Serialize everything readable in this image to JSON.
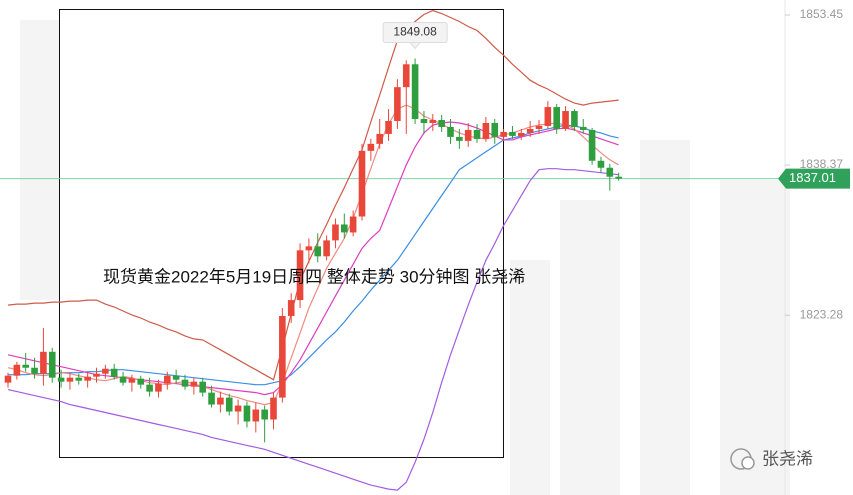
{
  "chart_data": {
    "type": "candlestick",
    "title": "现货黄金2022年5月19日周四 整体走势 30分钟图 张尧浠",
    "watermark": "张尧浠",
    "ylim": [
      1805.21,
      1854.96
    ],
    "yticks": [
      1853.45,
      1838.37,
      1823.28
    ],
    "up_color": "#e8473a",
    "down_color": "#2e9e3e",
    "last_price": 1837.01,
    "peak_label": 1849.08,
    "candles": [
      [
        1816.5,
        1817.5,
        1816.0,
        1817.2
      ],
      [
        1817.2,
        1818.6,
        1816.8,
        1818.3
      ],
      [
        1818.3,
        1819.5,
        1817.6,
        1818.0
      ],
      [
        1818.0,
        1819.0,
        1816.9,
        1817.4
      ],
      [
        1817.4,
        1822.0,
        1816.2,
        1819.6
      ],
      [
        1819.6,
        1820.0,
        1816.5,
        1817.0
      ],
      [
        1817.0,
        1817.8,
        1816.0,
        1816.6
      ],
      [
        1816.6,
        1817.5,
        1815.8,
        1817.0
      ],
      [
        1817.0,
        1817.4,
        1816.3,
        1816.7
      ],
      [
        1816.7,
        1817.6,
        1816.0,
        1817.1
      ],
      [
        1817.1,
        1818.0,
        1816.5,
        1817.4
      ],
      [
        1817.4,
        1818.3,
        1816.9,
        1817.9
      ],
      [
        1817.9,
        1818.4,
        1816.8,
        1817.1
      ],
      [
        1817.1,
        1817.6,
        1816.2,
        1816.5
      ],
      [
        1816.5,
        1817.3,
        1815.6,
        1816.9
      ],
      [
        1816.9,
        1817.2,
        1815.9,
        1816.3
      ],
      [
        1816.3,
        1817.0,
        1815.1,
        1815.6
      ],
      [
        1815.6,
        1816.8,
        1815.0,
        1816.4
      ],
      [
        1816.4,
        1817.6,
        1815.8,
        1817.2
      ],
      [
        1817.2,
        1817.8,
        1816.4,
        1816.8
      ],
      [
        1816.8,
        1817.3,
        1815.8,
        1816.1
      ],
      [
        1816.1,
        1817.0,
        1815.3,
        1816.6
      ],
      [
        1816.6,
        1817.0,
        1815.1,
        1815.5
      ],
      [
        1815.5,
        1816.2,
        1814.0,
        1814.3
      ],
      [
        1814.3,
        1815.6,
        1813.5,
        1815.0
      ],
      [
        1815.0,
        1815.4,
        1813.2,
        1813.6
      ],
      [
        1813.6,
        1814.8,
        1812.3,
        1814.2
      ],
      [
        1814.2,
        1814.6,
        1812.0,
        1812.6
      ],
      [
        1812.6,
        1814.5,
        1811.5,
        1813.8
      ],
      [
        1813.8,
        1814.2,
        1810.5,
        1812.8
      ],
      [
        1812.8,
        1815.5,
        1811.8,
        1815.0
      ],
      [
        1815.0,
        1824.0,
        1814.5,
        1823.2
      ],
      [
        1823.2,
        1825.5,
        1822.5,
        1824.8
      ],
      [
        1824.8,
        1830.5,
        1824.0,
        1829.8
      ],
      [
        1829.8,
        1831.0,
        1828.5,
        1830.2
      ],
      [
        1830.2,
        1831.5,
        1828.6,
        1829.2
      ],
      [
        1829.2,
        1831.3,
        1828.8,
        1830.8
      ],
      [
        1830.8,
        1833.0,
        1830.0,
        1832.4
      ],
      [
        1832.4,
        1833.5,
        1831.0,
        1831.6
      ],
      [
        1831.6,
        1833.8,
        1831.2,
        1833.2
      ],
      [
        1833.2,
        1840.5,
        1832.8,
        1839.8
      ],
      [
        1839.8,
        1841.0,
        1838.8,
        1840.5
      ],
      [
        1840.5,
        1843.0,
        1840.0,
        1841.5
      ],
      [
        1841.5,
        1844.0,
        1840.8,
        1842.8
      ],
      [
        1842.8,
        1847.0,
        1842.0,
        1846.2
      ],
      [
        1846.2,
        1848.9,
        1841.5,
        1848.5
      ],
      [
        1848.5,
        1849.08,
        1842.5,
        1843.0
      ],
      [
        1843.0,
        1843.8,
        1841.5,
        1842.6
      ],
      [
        1842.6,
        1843.5,
        1841.8,
        1842.9
      ],
      [
        1842.9,
        1843.4,
        1841.7,
        1842.2
      ],
      [
        1842.2,
        1843.0,
        1840.5,
        1841.2
      ],
      [
        1841.2,
        1842.0,
        1840.0,
        1840.8
      ],
      [
        1840.8,
        1842.6,
        1840.2,
        1841.9
      ],
      [
        1841.9,
        1842.5,
        1840.6,
        1841.0
      ],
      [
        1841.0,
        1843.2,
        1840.7,
        1842.6
      ],
      [
        1842.6,
        1843.0,
        1840.5,
        1841.2
      ],
      [
        1841.2,
        1842.0,
        1840.8,
        1841.7
      ],
      [
        1841.7,
        1842.3,
        1841.0,
        1841.3
      ],
      [
        1841.3,
        1842.0,
        1840.9,
        1841.6
      ],
      [
        1841.6,
        1842.8,
        1841.2,
        1842.0
      ],
      [
        1842.0,
        1842.9,
        1841.5,
        1842.3
      ],
      [
        1842.3,
        1844.8,
        1842.0,
        1844.2
      ],
      [
        1844.2,
        1844.5,
        1841.5,
        1842.0
      ],
      [
        1842.0,
        1844.3,
        1841.8,
        1843.8
      ],
      [
        1843.8,
        1844.0,
        1841.8,
        1842.2
      ],
      [
        1842.2,
        1843.0,
        1841.5,
        1841.9
      ],
      [
        1841.9,
        1842.1,
        1838.4,
        1838.8
      ],
      [
        1838.8,
        1839.2,
        1837.6,
        1838.1
      ],
      [
        1838.1,
        1838.5,
        1835.8,
        1837.2
      ],
      [
        1837.2,
        1837.6,
        1836.8,
        1837.01
      ]
    ],
    "series": [
      {
        "color": "#cf5a48",
        "values": [
          1824.3,
          1824.4,
          1824.4,
          1824.5,
          1824.5,
          1824.6,
          1824.6,
          1824.7,
          1824.7,
          1824.8,
          1824.8,
          1824.4,
          1824.1,
          1823.7,
          1823.3,
          1823.0,
          1822.6,
          1822.3,
          1821.9,
          1821.6,
          1821.2,
          1820.9,
          1820.8,
          1820.3,
          1819.8,
          1819.3,
          1818.8,
          1818.3,
          1817.8,
          1817.3,
          1816.8,
          1820.0,
          1823.4,
          1826.8,
          1828.7,
          1830.6,
          1832.4,
          1834.3,
          1836.1,
          1838.0,
          1839.9,
          1842.7,
          1845.4,
          1848.2,
          1850.9,
          1852.0,
          1852.8,
          1853.5,
          1853.9,
          1853.6,
          1853.2,
          1852.8,
          1852.3,
          1851.9,
          1851.1,
          1850.2,
          1849.4,
          1848.5,
          1847.7,
          1846.9,
          1846.4,
          1846.0,
          1845.5,
          1845.0,
          1844.6,
          1844.4,
          1844.6,
          1844.7,
          1844.8,
          1844.9
        ]
      },
      {
        "color": "#a35be0",
        "values": [
          1815.8,
          1815.6,
          1815.4,
          1815.2,
          1815.0,
          1814.8,
          1814.6,
          1814.3,
          1814.1,
          1813.9,
          1813.7,
          1813.5,
          1813.3,
          1813.1,
          1812.9,
          1812.7,
          1812.5,
          1812.3,
          1812.1,
          1811.9,
          1811.7,
          1811.5,
          1811.3,
          1811.0,
          1810.8,
          1810.6,
          1810.4,
          1810.2,
          1810.0,
          1809.8,
          1809.5,
          1809.2,
          1808.9,
          1808.6,
          1808.3,
          1808.0,
          1807.7,
          1807.4,
          1807.1,
          1806.8,
          1806.5,
          1806.2,
          1806.0,
          1805.8,
          1805.7,
          1806.5,
          1808.5,
          1810.8,
          1813.5,
          1816.5,
          1819.3,
          1821.8,
          1824.3,
          1826.6,
          1828.8,
          1830.5,
          1832.3,
          1833.8,
          1835.3,
          1836.8,
          1837.9,
          1838.0,
          1838.0,
          1837.9,
          1837.9,
          1837.8,
          1837.7,
          1837.6,
          1837.5,
          1837.4
        ]
      },
      {
        "color": "#3a8ee6",
        "values": [
          1817.3,
          1817.3,
          1817.3,
          1817.4,
          1817.4,
          1817.4,
          1817.5,
          1817.5,
          1817.5,
          1817.6,
          1817.6,
          1817.7,
          1817.8,
          1817.8,
          1817.7,
          1817.6,
          1817.5,
          1817.4,
          1817.3,
          1817.2,
          1817.1,
          1817.0,
          1816.9,
          1816.8,
          1816.7,
          1816.6,
          1816.5,
          1816.4,
          1816.3,
          1816.3,
          1816.5,
          1816.7,
          1817.3,
          1818.1,
          1819.0,
          1819.9,
          1820.8,
          1821.6,
          1822.6,
          1823.7,
          1824.7,
          1825.8,
          1826.8,
          1827.8,
          1828.8,
          1830.1,
          1831.4,
          1832.7,
          1834.0,
          1835.3,
          1836.6,
          1837.9,
          1838.5,
          1839.1,
          1839.7,
          1840.3,
          1840.9,
          1841.1,
          1841.3,
          1841.6,
          1841.8,
          1842.0,
          1842.2,
          1842.4,
          1842.3,
          1842.1,
          1841.8,
          1841.6,
          1841.3,
          1841.1
        ]
      },
      {
        "color": "#e03cc0",
        "values": [
          1819.3,
          1819.1,
          1818.9,
          1818.7,
          1818.5,
          1818.3,
          1818.1,
          1817.9,
          1817.7,
          1817.5,
          1817.3,
          1817.2,
          1817.1,
          1817.0,
          1816.9,
          1816.8,
          1816.7,
          1816.6,
          1816.5,
          1816.4,
          1816.3,
          1816.2,
          1816.1,
          1816.0,
          1815.9,
          1815.8,
          1815.7,
          1815.6,
          1815.5,
          1815.3,
          1815.5,
          1816.3,
          1817.5,
          1818.8,
          1820.4,
          1822.0,
          1823.6,
          1825.2,
          1826.8,
          1828.4,
          1830.0,
          1831.0,
          1831.8,
          1834.0,
          1836.2,
          1838.4,
          1840.2,
          1841.6,
          1842.4,
          1842.6,
          1842.7,
          1842.6,
          1842.4,
          1842.1,
          1841.7,
          1841.3,
          1840.9,
          1840.9,
          1841.2,
          1841.4,
          1841.6,
          1841.8,
          1842.0,
          1842.1,
          1841.9,
          1841.6,
          1841.3,
          1841.0,
          1840.7,
          1840.4
        ]
      },
      {
        "color": "#f08a80",
        "values": [
          1818.0,
          1817.8,
          1817.5,
          1817.3,
          1817.2,
          1817.3,
          1817.5,
          1817.4,
          1817.2,
          1817.0,
          1816.8,
          1816.7,
          1816.9,
          1817.1,
          1817.0,
          1816.7,
          1816.5,
          1816.4,
          1816.3,
          1816.5,
          1816.6,
          1816.4,
          1816.1,
          1815.8,
          1815.5,
          1815.2,
          1815.0,
          1814.7,
          1814.5,
          1814.3,
          1814.5,
          1816.5,
          1819.0,
          1821.5,
          1824.0,
          1826.0,
          1828.0,
          1829.5,
          1831.0,
          1833.0,
          1835.5,
          1838.0,
          1840.5,
          1842.5,
          1844.0,
          1844.4,
          1844.0,
          1843.3,
          1842.9,
          1842.5,
          1842.0,
          1841.6,
          1841.3,
          1841.1,
          1841.0,
          1841.2,
          1841.4,
          1841.6,
          1841.9,
          1842.2,
          1842.4,
          1842.5,
          1842.6,
          1842.4,
          1842.0,
          1841.2,
          1840.4,
          1839.6,
          1838.9,
          1838.4
        ]
      }
    ]
  }
}
